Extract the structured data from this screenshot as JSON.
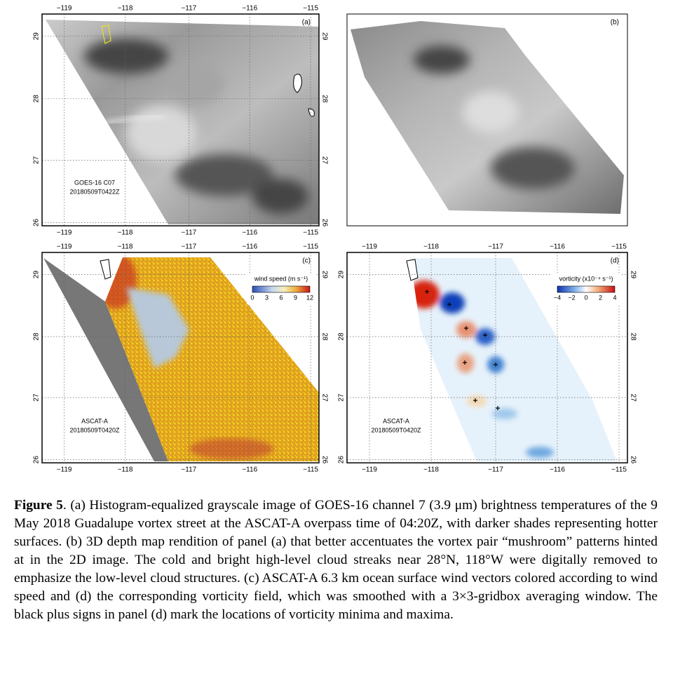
{
  "panels": [
    {
      "label": "(a)",
      "lon_ticks": [
        "−119",
        "−118",
        "−117",
        "−116",
        "−115"
      ],
      "lat_ticks": [
        "29",
        "28",
        "27",
        "26"
      ],
      "annotation": [
        "GOES-16 C07",
        "20180509T0422Z"
      ]
    },
    {
      "label": "(b)"
    },
    {
      "label": "(c)",
      "lon_ticks": [
        "−119",
        "−118",
        "−117",
        "−116",
        "−115"
      ],
      "lat_ticks": [
        "29",
        "28",
        "27",
        "26"
      ],
      "annotation": [
        "ASCAT-A",
        "20180509T0420Z"
      ],
      "colorbar": {
        "title": "wind speed (m s⁻¹)",
        "ticks": [
          "0",
          "3",
          "6",
          "9",
          "12"
        ]
      }
    },
    {
      "label": "(d)",
      "lon_ticks": [
        "−119",
        "−118",
        "−117",
        "−116",
        "−115"
      ],
      "lat_ticks": [
        "29",
        "28",
        "27",
        "26"
      ],
      "annotation": [
        "ASCAT-A",
        "20180509T0420Z"
      ],
      "colorbar": {
        "title": "vorticity (x10⁻⁴ s⁻¹)",
        "ticks": [
          "−4",
          "−2",
          "0",
          "2",
          "4"
        ]
      }
    }
  ],
  "caption": {
    "figure_label": "Figure 5",
    "text": ". (a) Histogram-equalized grayscale image of GOES-16 channel 7 (3.9 μm) brightness temperatures of the 9 May 2018 Guadalupe vortex street at the ASCAT-A overpass time of 04:20Z, with darker shades representing hotter surfaces. (b) 3D depth map rendition of panel (a) that better accentuates the vortex pair “mushroom” patterns hinted at in the 2D image. The cold and bright high-level cloud streaks near 28°N, 118°W were digitally removed to emphasize the low-level cloud structures. (c) ASCAT-A 6.3 km ocean surface wind vectors colored according to wind speed and (d) the corresponding vorticity field, which was smoothed with a 3×3-gridbox averaging window. The black plus signs in panel (d) mark the locations of vorticity minima and maxima."
  }
}
